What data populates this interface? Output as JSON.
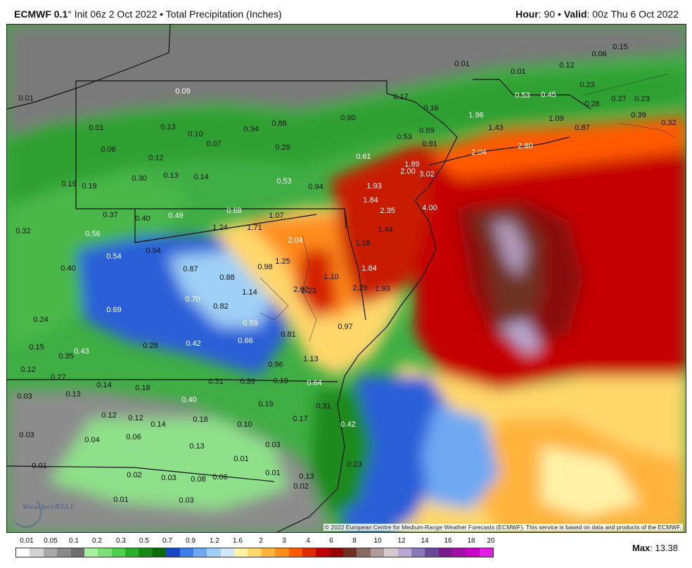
{
  "header": {
    "model": "ECMWF 0.1",
    "init_text": "° Init 06z 2 Oct 2022 • Total Precipitation (Inches)",
    "hour_label": "Hour",
    "hour_value": ": 90 • ",
    "valid_label": "Valid",
    "valid_value": ": 00z Thu 6 Oct 2022"
  },
  "map": {
    "copyright": "© 2022 European Centre for Medium-Range Weather Forecasts (ECMWF). This service is based on data and products of the ECMWF.",
    "logo_text": "WeatherBELL",
    "value_labels": [
      "0.01",
      "0.01",
      "0.09",
      "0.13",
      "0.10",
      "0.07",
      "0.34",
      "0.88",
      "0.90",
      "0.17",
      "0.16",
      "0.01",
      "0.01",
      "0.12",
      "0.06",
      "0.15",
      "0.23",
      "0.53",
      "0.45",
      "0.27",
      "0.23",
      "0.28",
      "0.39",
      "0.32",
      "0.08",
      "0.12",
      "0.29",
      "0.53",
      "0.69",
      "0.91",
      "1.09",
      "0.87",
      "1.43",
      "1.96",
      "2.04",
      "2.80",
      "0.13",
      "0.14",
      "0.19",
      "0.19",
      "0.30",
      "0.61",
      "1.89",
      "2.00",
      "3.02",
      "0.53",
      "0.94",
      "1.93",
      "1.84",
      "2.35",
      "4.00",
      "0.32",
      "0.37",
      "0.40",
      "0.49",
      "0.68",
      "1.07",
      "1.24",
      "1.71",
      "1.44",
      "0.56",
      "0.54",
      "0.94",
      "2.04",
      "1.18",
      "0.40",
      "0.87",
      "0.88",
      "0.98",
      "1.25",
      "1.84",
      "1.10",
      "0.69",
      "0.70",
      "0.82",
      "1.14",
      "2.62",
      "2.23",
      "2.29",
      "1.93",
      "0.24",
      "0.59",
      "0.81",
      "0.97",
      "0.15",
      "0.43",
      "0.35",
      "0.28",
      "0.42",
      "0.66",
      "0.12",
      "0.96",
      "1.13",
      "0.27",
      "0.14",
      "0.18",
      "0.31",
      "0.33",
      "0.19",
      "0.64",
      "0.03",
      "0.13",
      "0.40",
      "0.19",
      "0.31",
      "0.12",
      "0.12",
      "0.14",
      "0.18",
      "0.10",
      "0.17",
      "0.42",
      "0.03",
      "0.04",
      "0.06",
      "0.13",
      "0.03",
      "0.01",
      "0.23",
      "0.01",
      "0.02",
      "0.03",
      "0.08",
      "0.06",
      "0.01",
      "0.13",
      "0.02",
      "0.01",
      "0.03"
    ]
  },
  "legend": {
    "ticks": [
      "0.01",
      "0.05",
      "0.1",
      "0.2",
      "0.3",
      "0.5",
      "0.7",
      "0.9",
      "1.2",
      "1.6",
      "2",
      "3",
      "4",
      "6",
      "8",
      "10",
      "12",
      "14",
      "16",
      "18",
      "20"
    ],
    "colors": [
      "#ffffff",
      "#d3d3d3",
      "#a9a9a9",
      "#8a8a8a",
      "#6e6e6e",
      "#a6f0a0",
      "#7ee07a",
      "#4fd04f",
      "#2bb02b",
      "#168a16",
      "#0a6b0a",
      "#1c46c8",
      "#3f7ee8",
      "#6fa9f2",
      "#a0cff7",
      "#cfe8fb",
      "#fff3a8",
      "#ffd76a",
      "#ffb43c",
      "#ff8c1a",
      "#ff5a00",
      "#e02a00",
      "#c00000",
      "#960000",
      "#6e3020",
      "#8a6a60",
      "#b09a9a",
      "#d8c8d0",
      "#b8a8d0",
      "#8878b8",
      "#6a4898",
      "#7a1a8a",
      "#a010a8",
      "#c800c8",
      "#e020e0"
    ],
    "max_label": "Max",
    "max_value": ": 13.38"
  }
}
